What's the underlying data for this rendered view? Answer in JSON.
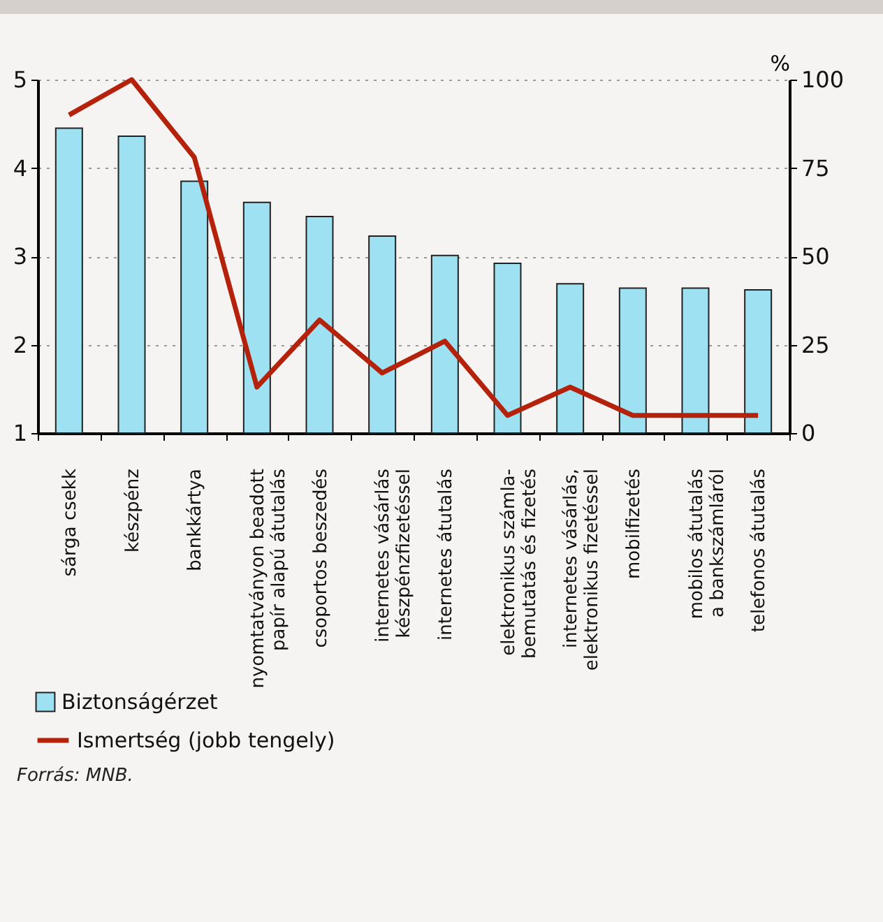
{
  "chart_data": {
    "type": "bar",
    "categories": [
      "sárga csekk",
      "készpénz",
      "bankkártya",
      "nyomtatványon beadott\npapír alapú átutalás",
      "csoportos beszedés",
      "internetes vásárlás\nkészpénzfizetéssel",
      "internetes átutalás",
      "elektronikus számla-\nbemutatás és fizetés",
      "internetes vásárlás,\nelektronikus fizetéssel",
      "mobilfizetés",
      "mobilos átutalás\na bankszámláról",
      "telefonos átutalás"
    ],
    "series": [
      {
        "name": "Biztonságérzet",
        "color": "#9de1f3",
        "values": [
          4.45,
          4.36,
          3.85,
          3.61,
          3.45,
          3.23,
          3.01,
          2.92,
          2.69,
          2.64,
          2.64,
          2.62
        ]
      },
      {
        "name": "Ismertség (jobb tengely)",
        "type": "line",
        "axis": "y2",
        "color": "#b5220c",
        "values": [
          90,
          100,
          78,
          13,
          32,
          17,
          26,
          5,
          13,
          5,
          5,
          5
        ]
      }
    ],
    "ylim": [
      1,
      5
    ],
    "yticks": [
      1,
      2,
      3,
      4,
      5
    ],
    "y2lim": [
      0,
      100
    ],
    "y2ticks": [
      0,
      25,
      50,
      75,
      100
    ],
    "y2label": "%",
    "grid": "y",
    "legend": "bottom",
    "annotations": [
      "Forrás: MNB."
    ]
  }
}
